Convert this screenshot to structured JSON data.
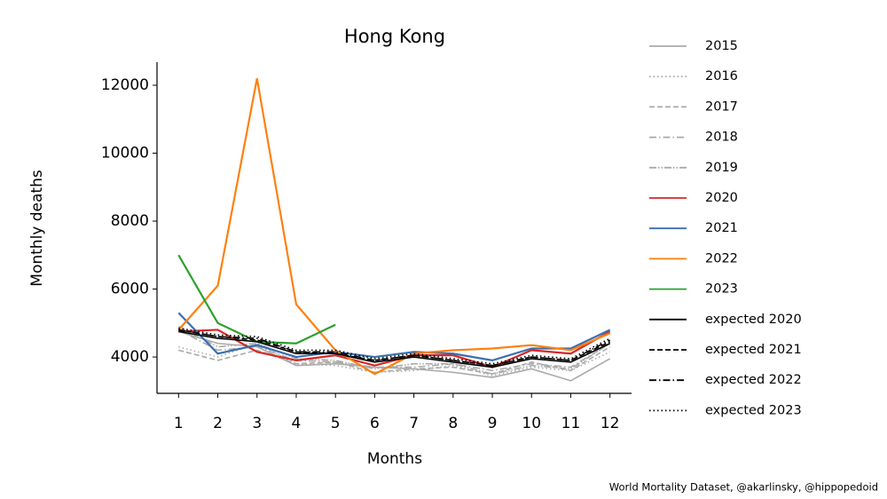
{
  "chart_data": {
    "type": "line",
    "title": "Hong Kong",
    "xlabel": "Months",
    "ylabel": "Monthly deaths",
    "source": "World Mortality Dataset, @akarlinsky, @hippopedoid",
    "x": [
      1,
      2,
      3,
      4,
      5,
      6,
      7,
      8,
      9,
      10,
      11,
      12
    ],
    "xlim": [
      0.45,
      12.55
    ],
    "xticks": [
      1,
      2,
      3,
      4,
      5,
      6,
      7,
      8,
      9,
      10,
      11,
      12
    ],
    "ylim": [
      2930,
      12680
    ],
    "yticks": [
      4000,
      6000,
      8000,
      10000,
      12000
    ],
    "legend": "outside-right",
    "series": [
      {
        "name": "2015",
        "color": "#aaaaaa",
        "linestyle": "solid",
        "values": [
          4750,
          4400,
          4300,
          3750,
          3800,
          3700,
          3650,
          3550,
          3400,
          3650,
          3300,
          3950
        ]
      },
      {
        "name": "2016",
        "color": "#aaaaaa",
        "linestyle": "dotted",
        "values": [
          4300,
          4000,
          4400,
          3800,
          3750,
          3550,
          3600,
          3750,
          3450,
          3700,
          3600,
          4150
        ]
      },
      {
        "name": "2017",
        "color": "#aaaaaa",
        "linestyle": "dashed",
        "values": [
          4200,
          3900,
          4200,
          3800,
          3850,
          3550,
          3650,
          3700,
          3500,
          3850,
          3600,
          4300
        ]
      },
      {
        "name": "2018",
        "color": "#aaaaaa",
        "linestyle": "dashdot",
        "values": [
          4800,
          4200,
          4300,
          3900,
          3850,
          3700,
          3700,
          3800,
          3600,
          3800,
          3700,
          4400
        ]
      },
      {
        "name": "2019",
        "color": "#aaaaaa",
        "linestyle": "dashdotdot",
        "values": [
          4900,
          4300,
          4400,
          3950,
          3900,
          3650,
          3800,
          3800,
          3500,
          3750,
          3650,
          4400
        ]
      },
      {
        "name": "2020",
        "color": "#d62728",
        "linestyle": "solid",
        "values": [
          4750,
          4800,
          4150,
          3900,
          4050,
          3750,
          4050,
          4050,
          3700,
          4200,
          4100,
          4750
        ]
      },
      {
        "name": "2021",
        "color": "#3a6faf",
        "linestyle": "solid",
        "values": [
          5300,
          4100,
          4350,
          4000,
          4150,
          4000,
          4150,
          4100,
          3900,
          4250,
          4250,
          4800
        ]
      },
      {
        "name": "2022",
        "color": "#ff7f0e",
        "linestyle": "solid",
        "values": [
          4800,
          6100,
          12200,
          5550,
          4200,
          3500,
          4100,
          4200,
          4250,
          4350,
          4200,
          4700
        ]
      },
      {
        "name": "2023",
        "color": "#2ca02c",
        "linestyle": "solid",
        "values": [
          7000,
          5000,
          4450,
          4400,
          4950,
          null,
          null,
          null,
          null,
          null,
          null,
          null
        ]
      },
      {
        "name": "expected 2020",
        "color": "#000000",
        "linestyle": "solid",
        "values": [
          4750,
          4550,
          4450,
          4100,
          4100,
          3850,
          4000,
          3850,
          3700,
          3950,
          3850,
          4400
        ]
      },
      {
        "name": "expected 2021",
        "color": "#000000",
        "linestyle": "dashed",
        "values": [
          4800,
          4600,
          4500,
          4150,
          4100,
          3900,
          4050,
          3900,
          3750,
          4000,
          3900,
          4450
        ]
      },
      {
        "name": "expected 2022",
        "color": "#000000",
        "linestyle": "dashdot",
        "values": [
          4800,
          4600,
          4550,
          4150,
          4150,
          3900,
          4050,
          3900,
          3750,
          4000,
          3900,
          4500
        ]
      },
      {
        "name": "expected 2023",
        "color": "#000000",
        "linestyle": "dotted",
        "values": [
          4850,
          4650,
          4600,
          4200,
          4200,
          3950,
          4100,
          3950,
          3800,
          4050,
          3950,
          4550
        ]
      }
    ]
  }
}
